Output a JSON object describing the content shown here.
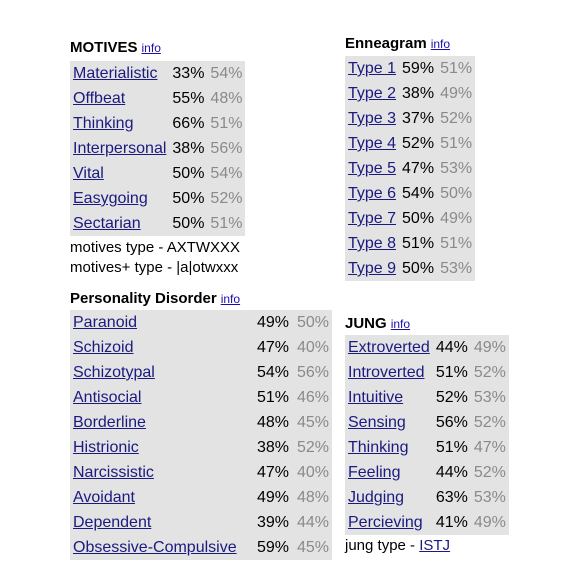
{
  "motives": {
    "title": "MOTIVES",
    "info": "info",
    "rows": [
      {
        "label": "Materialistic",
        "v1": "33%",
        "v2": "54%"
      },
      {
        "label": "Offbeat",
        "v1": "55%",
        "v2": "48%"
      },
      {
        "label": "Thinking",
        "v1": "66%",
        "v2": "51%"
      },
      {
        "label": "Interpersonal",
        "v1": "38%",
        "v2": "56%"
      },
      {
        "label": "Vital",
        "v1": "50%",
        "v2": "54%"
      },
      {
        "label": "Easygoing",
        "v1": "50%",
        "v2": "52%"
      },
      {
        "label": "Sectarian",
        "v1": "50%",
        "v2": "51%"
      }
    ],
    "type_line": "motives type - AXTWXXX",
    "type_plus_line": "motives+ type - |a|otwxxx"
  },
  "enneagram": {
    "title": "Enneagram",
    "info": "info",
    "rows": [
      {
        "label": "Type 1",
        "v1": "59%",
        "v2": "51%"
      },
      {
        "label": "Type 2",
        "v1": "38%",
        "v2": "49%"
      },
      {
        "label": "Type 3",
        "v1": "37%",
        "v2": "52%"
      },
      {
        "label": "Type 4",
        "v1": "52%",
        "v2": "51%"
      },
      {
        "label": "Type 5",
        "v1": "47%",
        "v2": "53%"
      },
      {
        "label": "Type 6",
        "v1": "54%",
        "v2": "50%"
      },
      {
        "label": "Type 7",
        "v1": "50%",
        "v2": "49%"
      },
      {
        "label": "Type 8",
        "v1": "51%",
        "v2": "51%"
      },
      {
        "label": "Type 9",
        "v1": "50%",
        "v2": "53%"
      }
    ]
  },
  "pd": {
    "title": "Personality Disorder",
    "info": "info",
    "rows": [
      {
        "label": "Paranoid",
        "v1": "49%",
        "v2": "50%"
      },
      {
        "label": "Schizoid",
        "v1": "47%",
        "v2": "40%"
      },
      {
        "label": "Schizotypal",
        "v1": "54%",
        "v2": "56%"
      },
      {
        "label": "Antisocial",
        "v1": "51%",
        "v2": "46%"
      },
      {
        "label": "Borderline",
        "v1": "48%",
        "v2": "45%"
      },
      {
        "label": "Histrionic",
        "v1": "38%",
        "v2": "52%"
      },
      {
        "label": "Narcissistic",
        "v1": "47%",
        "v2": "40%"
      },
      {
        "label": "Avoidant",
        "v1": "49%",
        "v2": "48%"
      },
      {
        "label": "Dependent",
        "v1": "39%",
        "v2": "44%"
      },
      {
        "label": "Obsessive-Compulsive",
        "v1": "59%",
        "v2": "45%"
      }
    ]
  },
  "jung": {
    "title": "JUNG",
    "info": "info",
    "rows": [
      {
        "label": "Extroverted",
        "v1": "44%",
        "v2": "49%"
      },
      {
        "label": "Introverted",
        "v1": "51%",
        "v2": "52%"
      },
      {
        "label": "Intuitive",
        "v1": "52%",
        "v2": "53%"
      },
      {
        "label": "Sensing",
        "v1": "56%",
        "v2": "52%"
      },
      {
        "label": "Thinking",
        "v1": "51%",
        "v2": "47%"
      },
      {
        "label": "Feeling",
        "v1": "44%",
        "v2": "52%"
      },
      {
        "label": "Judging",
        "v1": "63%",
        "v2": "53%"
      },
      {
        "label": "Percieving",
        "v1": "41%",
        "v2": "49%"
      }
    ],
    "type_prefix": "jung type - ",
    "type_value": "ISTJ"
  }
}
